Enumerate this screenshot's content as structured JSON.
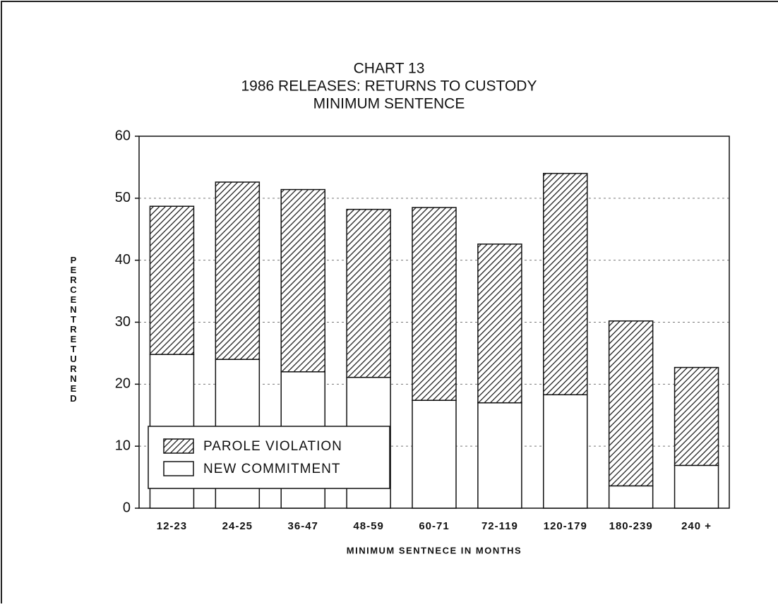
{
  "chart_data": {
    "type": "stacked_bar",
    "title": "CHART 13",
    "subtitle": [
      "1986 RELEASES: RETURNS TO CUSTODY",
      "MINIMUM SENTENCE"
    ],
    "x_label": "MINIMUM SENTNECE IN MONTHS",
    "y_label": "PERCENT RETURNED",
    "categories": [
      "12-23",
      "24-25",
      "36-47",
      "48-59",
      "60-71",
      "72-119",
      "120-179",
      "180-239",
      "240 +"
    ],
    "series": [
      {
        "name": "PAROLE VIOLATION",
        "color": "hatch",
        "values": [
          23.9,
          28.6,
          29.4,
          27.1,
          31.1,
          25.6,
          35.7,
          26.6,
          15.8
        ]
      },
      {
        "name": "NEW COMMITMENT",
        "color": "#ffffff",
        "values": [
          24.8,
          24.0,
          22.0,
          21.1,
          17.4,
          17.0,
          18.3,
          3.6,
          6.9
        ]
      }
    ],
    "ylim": [
      0,
      60
    ],
    "yticks": [
      0,
      10,
      20,
      30,
      40,
      50,
      60
    ],
    "grid": true,
    "legend": "lower left"
  }
}
